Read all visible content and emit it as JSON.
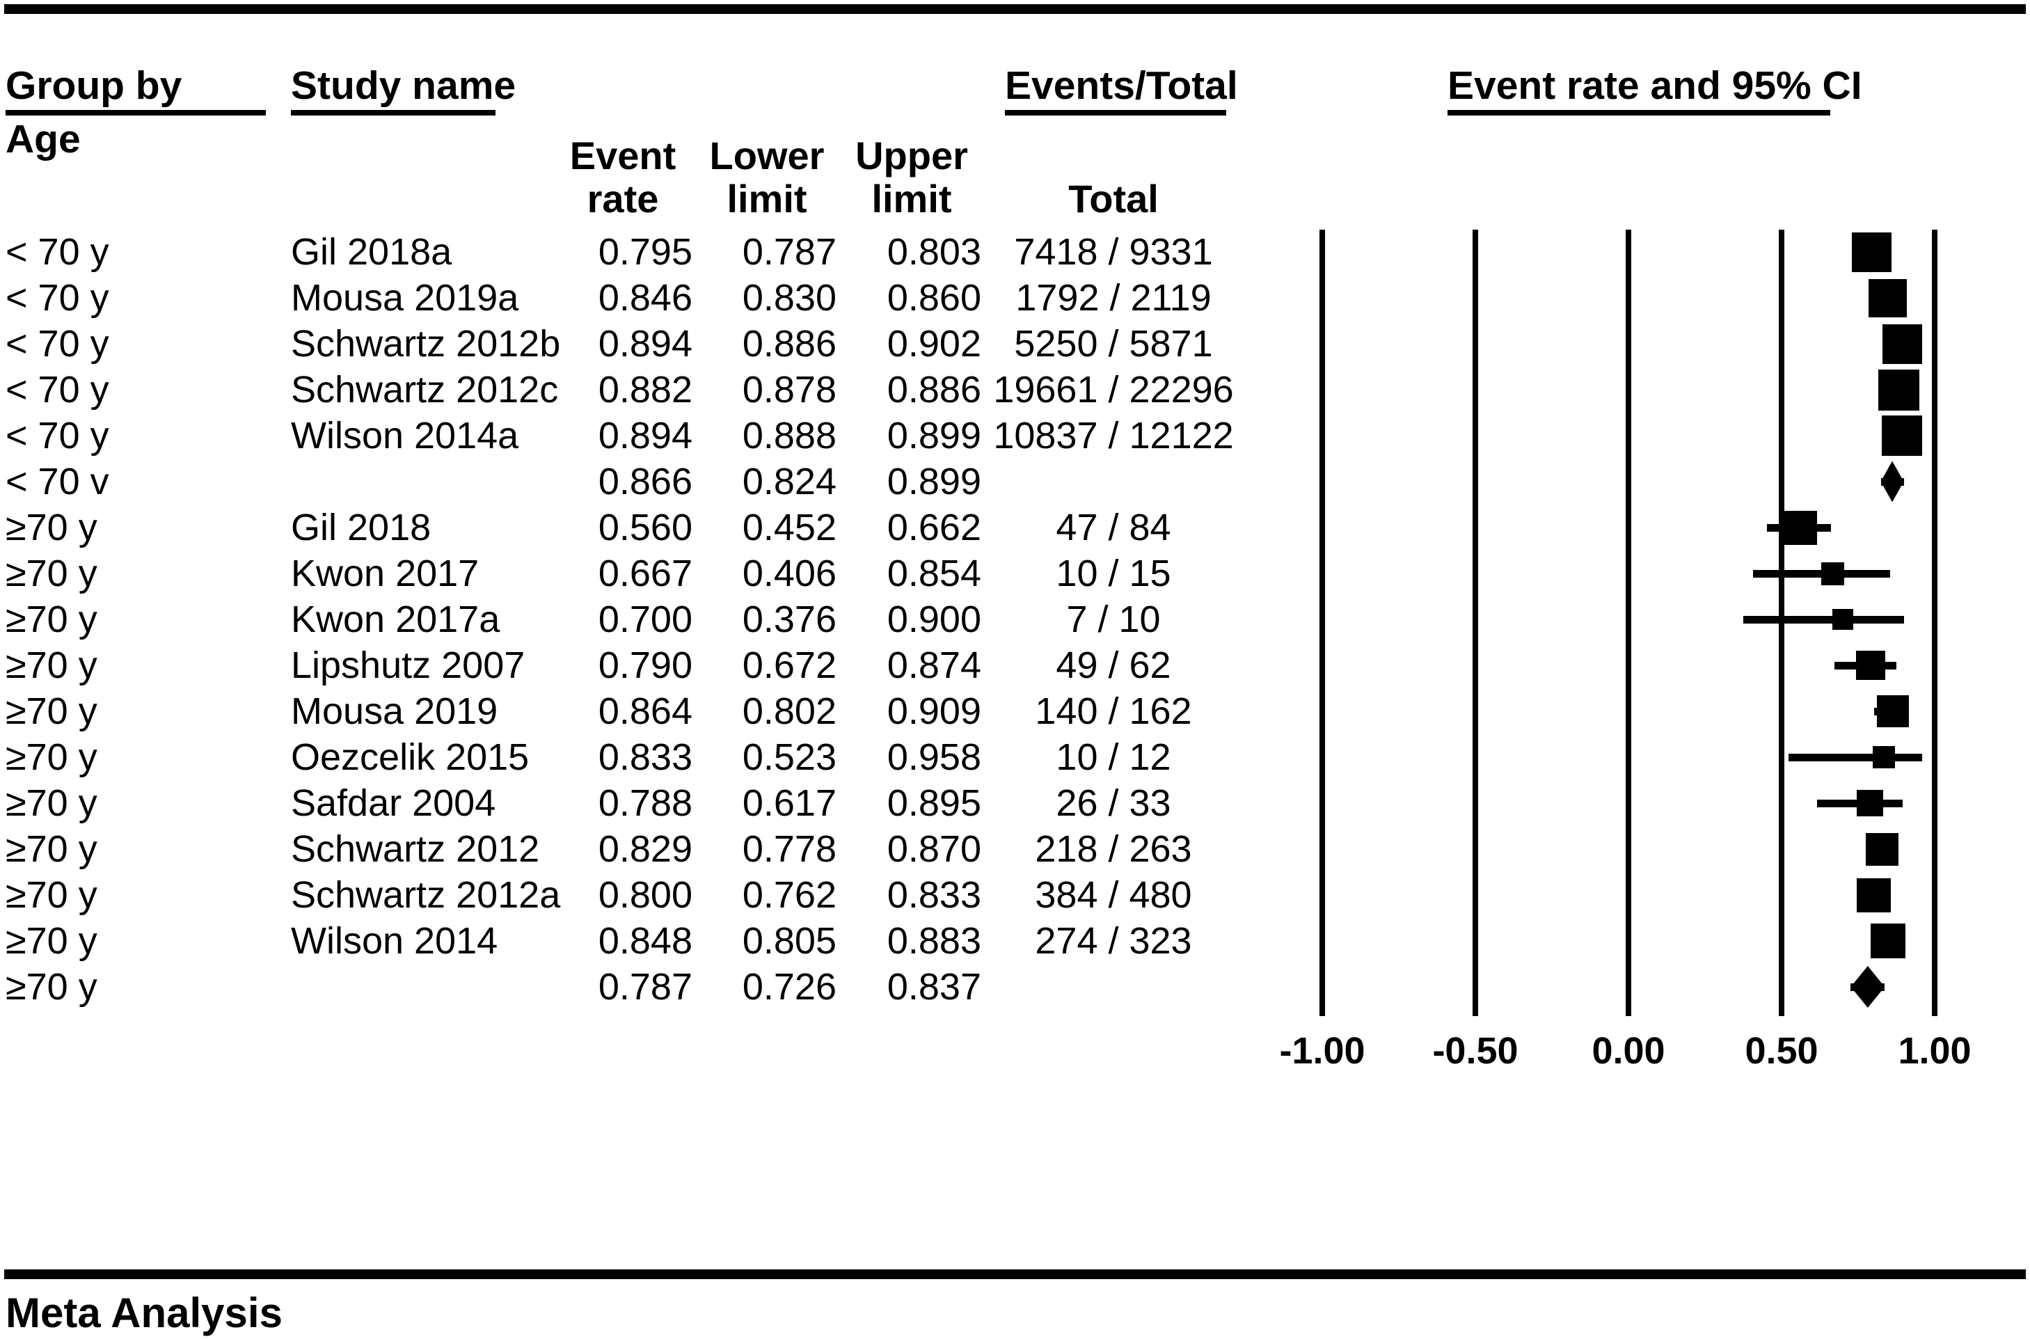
{
  "colors": {
    "ink": "#000000",
    "background": "#ffffff"
  },
  "header": {
    "group_by": "Group by",
    "group_by_sub": "Age",
    "study_name": "Study name",
    "events_total": "Events/Total",
    "ci_title": "Event rate and 95% CI",
    "columns": {
      "event_rate_line1": "Event",
      "event_rate_line2": "rate",
      "lower_line1": "Lower",
      "lower_line2": "limit",
      "upper_line1": "Upper",
      "upper_line2": "limit",
      "total": "Total"
    }
  },
  "footer": {
    "title": "Meta Analysis"
  },
  "chart_data": {
    "type": "forest",
    "title": "Event rate and 95% CI",
    "xlim": [
      -1,
      1
    ],
    "grid": "vertical-lines",
    "axis": {
      "tick_labels": [
        "-1.00",
        "-0.50",
        "0.00",
        "0.50",
        "1.00"
      ],
      "tick_values": [
        -1,
        -0.5,
        0,
        0.5,
        1
      ]
    },
    "groups": [
      "< 70 y",
      "≥70 y"
    ],
    "rows": [
      {
        "group": "< 70 y",
        "study": "Gil 2018a",
        "event_rate": "0.795",
        "lower": "0.787",
        "upper": "0.803",
        "events_total": "7418 / 9331",
        "value": 0.795,
        "lo": 0.787,
        "hi": 0.803,
        "marker": "square",
        "marker_size": 57
      },
      {
        "group": "< 70 y",
        "study": "Mousa 2019a",
        "event_rate": "0.846",
        "lower": "0.830",
        "upper": "0.860",
        "events_total": "1792 / 2119",
        "value": 0.846,
        "lo": 0.83,
        "hi": 0.86,
        "marker": "square",
        "marker_size": 55
      },
      {
        "group": "< 70 y",
        "study": "Schwartz 2012b",
        "event_rate": "0.894",
        "lower": "0.886",
        "upper": "0.902",
        "events_total": "5250 / 5871",
        "value": 0.894,
        "lo": 0.886,
        "hi": 0.902,
        "marker": "square",
        "marker_size": 57
      },
      {
        "group": "< 70 y",
        "study": "Schwartz 2012c",
        "event_rate": "0.882",
        "lower": "0.878",
        "upper": "0.886",
        "events_total": "19661 / 22296",
        "value": 0.882,
        "lo": 0.878,
        "hi": 0.886,
        "marker": "square",
        "marker_size": 59
      },
      {
        "group": "< 70 y",
        "study": "Wilson 2014a",
        "event_rate": "0.894",
        "lower": "0.888",
        "upper": "0.899",
        "events_total": "10837 / 12122",
        "value": 0.894,
        "lo": 0.888,
        "hi": 0.899,
        "marker": "square",
        "marker_size": 58
      },
      {
        "group": "< 70 v",
        "study": "",
        "event_rate": "0.866",
        "lower": "0.824",
        "upper": "0.899",
        "events_total": "",
        "value": 0.866,
        "lo": 0.824,
        "hi": 0.899,
        "marker": "diamond",
        "marker_size": 59
      },
      {
        "group": "≥70 y",
        "study": "Gil 2018",
        "event_rate": "0.560",
        "lower": "0.452",
        "upper": "0.662",
        "events_total": "47 / 84",
        "value": 0.56,
        "lo": 0.452,
        "hi": 0.662,
        "marker": "square",
        "marker_size": 49
      },
      {
        "group": "≥70 y",
        "study": "Kwon 2017",
        "event_rate": "0.667",
        "lower": "0.406",
        "upper": "0.854",
        "events_total": "10 / 15",
        "value": 0.667,
        "lo": 0.406,
        "hi": 0.854,
        "marker": "square",
        "marker_size": 33
      },
      {
        "group": "≥70 y",
        "study": "Kwon 2017a",
        "event_rate": "0.700",
        "lower": "0.376",
        "upper": "0.900",
        "events_total": "7 / 10",
        "value": 0.7,
        "lo": 0.376,
        "hi": 0.9,
        "marker": "square",
        "marker_size": 30
      },
      {
        "group": "≥70 y",
        "study": "Lipshutz 2007",
        "event_rate": "0.790",
        "lower": "0.672",
        "upper": "0.874",
        "events_total": "49 / 62",
        "value": 0.79,
        "lo": 0.672,
        "hi": 0.874,
        "marker": "square",
        "marker_size": 42
      },
      {
        "group": "≥70 y",
        "study": "Mousa 2019",
        "event_rate": "0.864",
        "lower": "0.802",
        "upper": "0.909",
        "events_total": "140 / 162",
        "value": 0.864,
        "lo": 0.802,
        "hi": 0.909,
        "marker": "square",
        "marker_size": 46
      },
      {
        "group": "≥70 y",
        "study": "Oezcelik 2015",
        "event_rate": "0.833",
        "lower": "0.523",
        "upper": "0.958",
        "events_total": "10 / 12",
        "value": 0.833,
        "lo": 0.523,
        "hi": 0.958,
        "marker": "square",
        "marker_size": 32
      },
      {
        "group": "≥70 y",
        "study": "Safdar 2004",
        "event_rate": "0.788",
        "lower": "0.617",
        "upper": "0.895",
        "events_total": "26 / 33",
        "value": 0.788,
        "lo": 0.617,
        "hi": 0.895,
        "marker": "square",
        "marker_size": 38
      },
      {
        "group": "≥70 y",
        "study": "Schwartz 2012",
        "event_rate": "0.829",
        "lower": "0.778",
        "upper": "0.870",
        "events_total": "218 / 263",
        "value": 0.829,
        "lo": 0.778,
        "hi": 0.87,
        "marker": "square",
        "marker_size": 47
      },
      {
        "group": "≥70 y",
        "study": "Schwartz 2012a",
        "event_rate": "0.800",
        "lower": "0.762",
        "upper": "0.833",
        "events_total": "384 / 480",
        "value": 0.8,
        "lo": 0.762,
        "hi": 0.833,
        "marker": "square",
        "marker_size": 49
      },
      {
        "group": "≥70 y",
        "study": "Wilson 2014",
        "event_rate": "0.848",
        "lower": "0.805",
        "upper": "0.883",
        "events_total": "274 / 323",
        "value": 0.848,
        "lo": 0.805,
        "hi": 0.883,
        "marker": "square",
        "marker_size": 50
      },
      {
        "group": "≥70 y",
        "study": "",
        "event_rate": "0.787",
        "lower": "0.726",
        "upper": "0.837",
        "events_total": "",
        "value": 0.787,
        "lo": 0.726,
        "hi": 0.837,
        "marker": "diamond",
        "marker_size": 60
      }
    ]
  }
}
